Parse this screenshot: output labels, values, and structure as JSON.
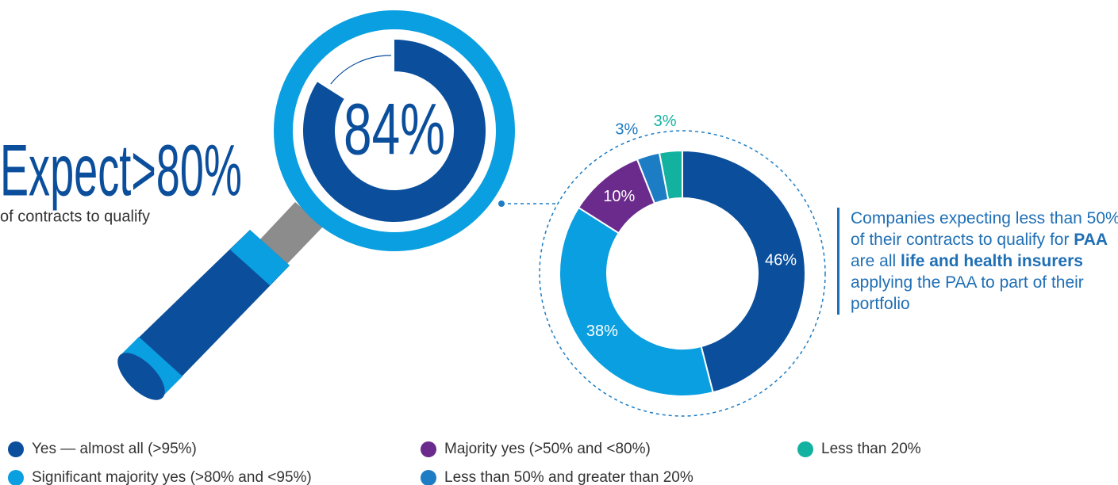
{
  "chart_data": {
    "type": "pie",
    "categories": [
      "Yes — almost all (>95%)",
      "Significant majority yes (>80% and <95%)",
      "Majority yes (>50% and <80%)",
      "Less than 50% and greater than 20%",
      "Less than 20%"
    ],
    "values": [
      46,
      38,
      10,
      3,
      3
    ],
    "value_labels": [
      "46%",
      "38%",
      "10%",
      "3%",
      "3%"
    ],
    "colors": [
      "#0b4f9c",
      "#0a9fe0",
      "#6b2b8c",
      "#1c7cc4",
      "#12b1a0"
    ],
    "highlight": {
      "value": 84,
      "label": "84%",
      "title": "Expect>80%",
      "subtitle": "of contracts to qualify"
    },
    "note": [
      "Companies expecting less than 50% of their contracts to qualify for ",
      "PAA",
      " are all ",
      "life and health insurers",
      " applying the PAA to part of their portfolio"
    ]
  }
}
